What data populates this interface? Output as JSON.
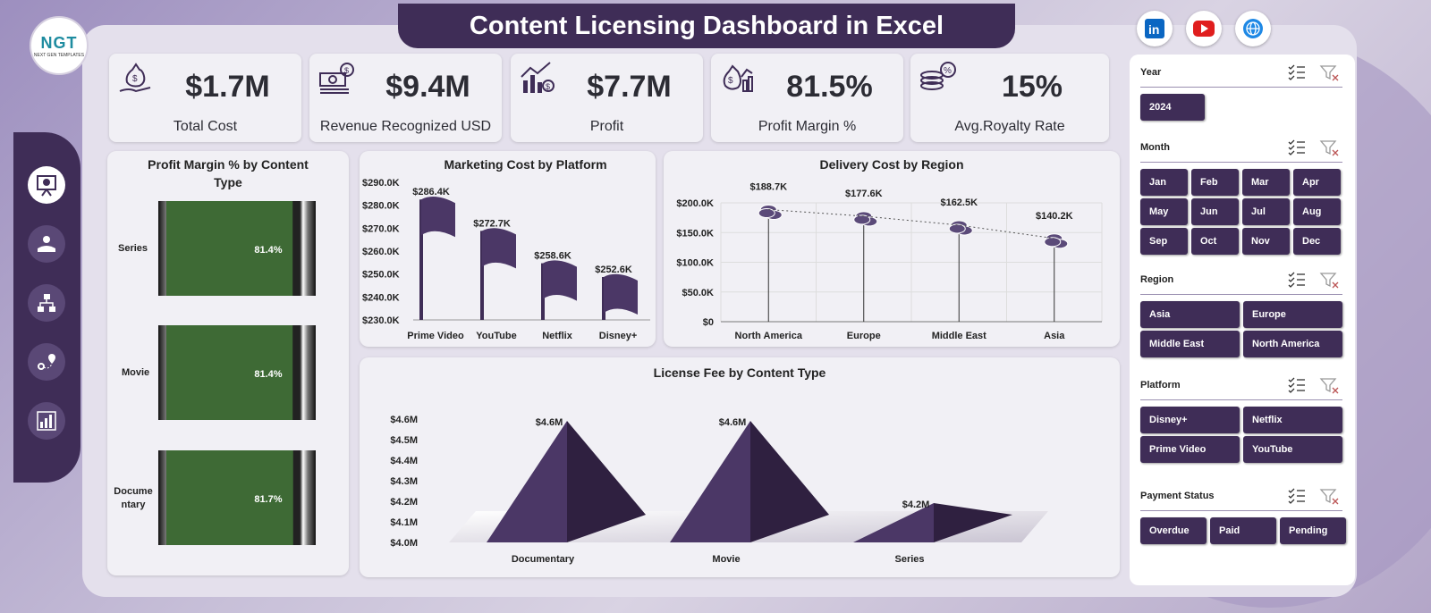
{
  "title": "Content Licensing Dashboard in Excel",
  "logo": {
    "text": "NGT",
    "sub": "NEXT GEN TEMPLATES"
  },
  "social": [
    {
      "icon": "linkedin-icon",
      "color": "#0a66c2"
    },
    {
      "icon": "youtube-icon",
      "color": "#e01e1e"
    },
    {
      "icon": "globe-icon",
      "color": "#1e88e5"
    }
  ],
  "kpis": [
    {
      "value": "$1.7M",
      "label": "Total Cost"
    },
    {
      "value": "$9.4M",
      "label": "Revenue Recognized USD"
    },
    {
      "value": "$7.7M",
      "label": "Profit"
    },
    {
      "value": "81.5%",
      "label": "Profit Margin %"
    },
    {
      "value": "15%",
      "label": "Avg.Royalty Rate"
    }
  ],
  "charts": {
    "profit_margin": {
      "title": "Profit Margin % by Content Type"
    },
    "marketing": {
      "title": "Marketing Cost by Platform"
    },
    "delivery": {
      "title": "Delivery Cost by Region"
    },
    "license": {
      "title": "License Fee by Content Type"
    }
  },
  "chart_data": [
    {
      "type": "bar",
      "title": "Profit Margin % by Content Type",
      "categories": [
        "Series",
        "Movie",
        "Documentary"
      ],
      "category_labels": [
        "Series",
        "Movie",
        "Docume",
        "ntary"
      ],
      "values": [
        81.4,
        81.4,
        81.7
      ],
      "labels": [
        "81.4%",
        "81.4%",
        "81.7%"
      ]
    },
    {
      "type": "bar",
      "title": "Marketing Cost by Platform",
      "categories": [
        "Prime Video",
        "YouTube",
        "Netflix",
        "Disney+"
      ],
      "values": [
        286.4,
        272.7,
        258.6,
        252.6
      ],
      "labels": [
        "$286.4K",
        "$272.7K",
        "$258.6K",
        "$252.6K"
      ],
      "yticks": [
        "$290.0K",
        "$280.0K",
        "$270.0K",
        "$260.0K",
        "$250.0K",
        "$240.0K",
        "$230.0K"
      ],
      "ylim": [
        230,
        290
      ]
    },
    {
      "type": "line",
      "title": "Delivery Cost by Region",
      "categories": [
        "North America",
        "Europe",
        "Middle East",
        "Asia"
      ],
      "values": [
        188.7,
        177.6,
        162.5,
        140.2
      ],
      "labels": [
        "$188.7K",
        "$177.6K",
        "$162.5K",
        "$140.2K"
      ],
      "yticks": [
        "$200.0K",
        "$150.0K",
        "$100.0K",
        "$50.0K",
        "$0"
      ],
      "ylim": [
        0,
        200
      ]
    },
    {
      "type": "bar",
      "title": "License Fee by Content Type",
      "categories": [
        "Documentary",
        "Movie",
        "Series"
      ],
      "values": [
        4.6,
        4.6,
        4.2
      ],
      "labels": [
        "$4.6M",
        "$4.6M",
        "$4.2M"
      ],
      "yticks": [
        "$4.6M",
        "$4.5M",
        "$4.4M",
        "$4.3M",
        "$4.2M",
        "$4.1M",
        "$4.0M"
      ],
      "ylim": [
        4.0,
        4.6
      ]
    }
  ],
  "slicers": {
    "year": {
      "label": "Year",
      "items": [
        "2024"
      ]
    },
    "month": {
      "label": "Month",
      "items": [
        "Jan",
        "Feb",
        "Mar",
        "Apr",
        "May",
        "Jun",
        "Jul",
        "Aug",
        "Sep",
        "Oct",
        "Nov",
        "Dec"
      ]
    },
    "region": {
      "label": "Region",
      "items": [
        "Asia",
        "Europe",
        "Middle East",
        "North America"
      ]
    },
    "platform": {
      "label": "Platform",
      "items": [
        "Disney+",
        "Netflix",
        "Prime Video",
        "YouTube"
      ]
    },
    "payment": {
      "label": "Payment Status",
      "items": [
        "Overdue",
        "Paid",
        "Pending"
      ]
    }
  },
  "colors": {
    "primary": "#3f2d57",
    "bar_green": "#3e6a35",
    "bg": "#e4e0ec"
  }
}
